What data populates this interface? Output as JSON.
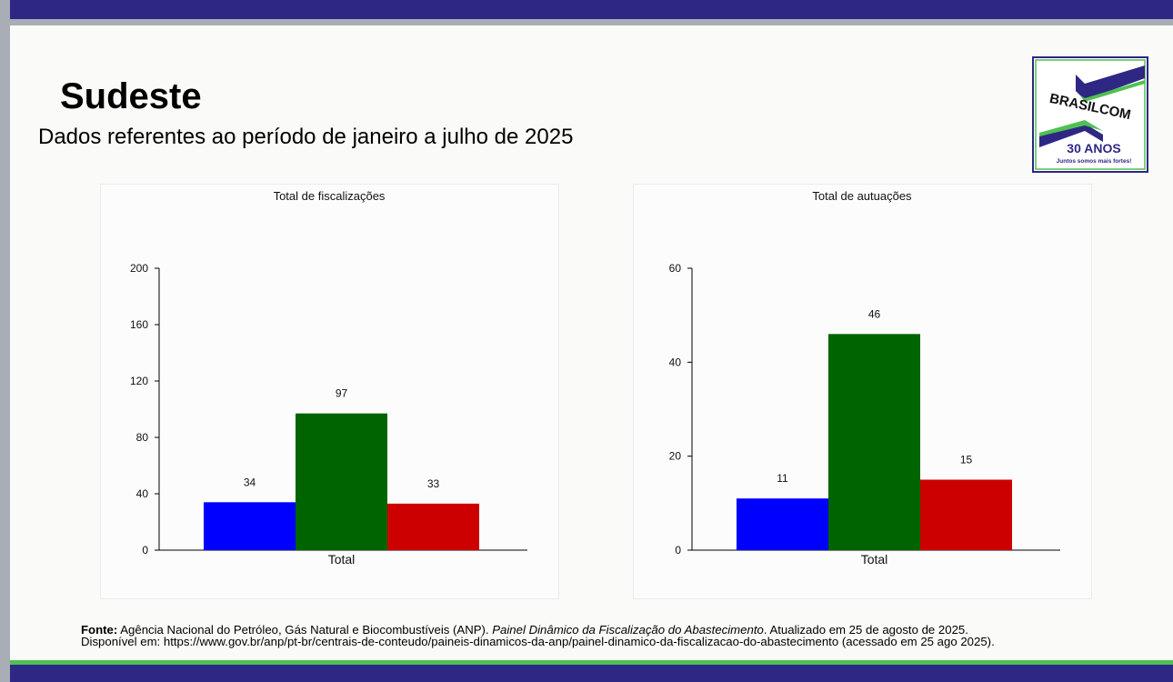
{
  "header": {
    "title": "Sudeste",
    "subtitle": "Dados referentes ao período de janeiro a julho de 2025"
  },
  "logo": {
    "text": "BRASILCOM",
    "years": "30 ANOS",
    "slogan": "Juntos somos mais fortes!"
  },
  "colors": {
    "blue": "#0000ff",
    "green": "#006400",
    "red": "#cc0000",
    "navy": "#2e2784"
  },
  "chart_data": [
    {
      "type": "bar",
      "title": "Total de fiscalizações",
      "categories": [
        "Total"
      ],
      "series": [
        {
          "name": "s1",
          "values": [
            34
          ]
        },
        {
          "name": "s2",
          "values": [
            97
          ]
        },
        {
          "name": "s3",
          "values": [
            33
          ]
        }
      ],
      "ylim": [
        0,
        200
      ],
      "yticks": [
        0,
        40,
        80,
        120,
        160,
        200
      ],
      "xlabel": "",
      "ylabel": ""
    },
    {
      "type": "bar",
      "title": "Total de autuações",
      "categories": [
        "Total"
      ],
      "series": [
        {
          "name": "s1",
          "values": [
            11
          ]
        },
        {
          "name": "s2",
          "values": [
            46
          ]
        },
        {
          "name": "s3",
          "values": [
            15
          ]
        }
      ],
      "ylim": [
        0,
        60
      ],
      "yticks": [
        0,
        20,
        40,
        60
      ],
      "xlabel": "",
      "ylabel": ""
    }
  ],
  "footer": {
    "label": "Fonte:",
    "source": " Agência Nacional do Petróleo, Gás Natural e Biocombustíveis (ANP). ",
    "publication": "Painel Dinâmico da Fiscalização do Abastecimento",
    "updated": ". Atualizado em 25 de agosto de 2025.",
    "line2": "Disponível em: https://www.gov.br/anp/pt-br/centrais-de-conteudo/paineis-dinamicos-da-anp/painel-dinamico-da-fiscalizacao-do-abastecimento (acessado em 25 ago 2025)."
  }
}
